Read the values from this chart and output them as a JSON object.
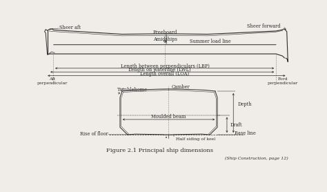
{
  "bg_color": "#f0ede8",
  "line_color": "#2a2a2a",
  "title": "Figure 2.1 Principal ship dimensions",
  "subtitle": "(Ship Construction, page 12)",
  "labels": {
    "sheer_aft": "Sheer aft",
    "sheer_forward": "Sheer forward",
    "freeboard": "Freeboard",
    "summer_load_line": "Summer load line",
    "amidships": "Amidships",
    "lbp": "Length between perpendiculars (LBP)",
    "lwl": "Length on waterline (LWL)",
    "loa": "Length overall (LOA)",
    "aft_perp": "Aft\nperpendicular",
    "ford_perp": "Ford\nperpendicular",
    "tumblehome": "Tumblehome",
    "camber": "Camber",
    "depth": "Depth",
    "draft": "Draft",
    "moulded_beam": "Moulded beam",
    "rise_of_floor": "Rise of floor",
    "base_line": "Base line",
    "half_siding": "Half siding of keel"
  }
}
